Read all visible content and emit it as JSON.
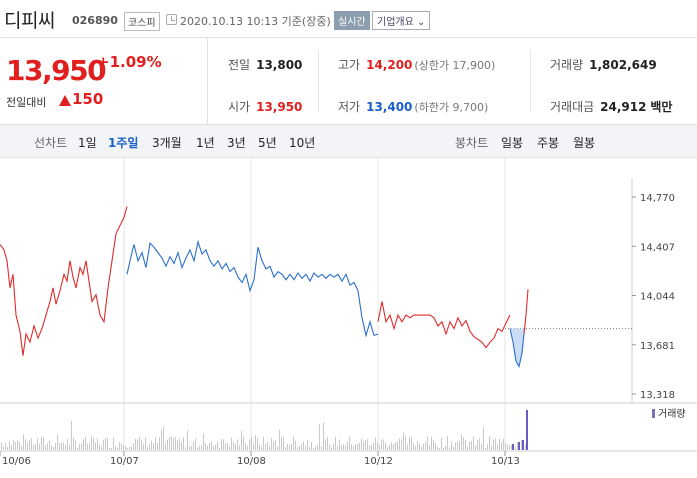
{
  "header": {
    "stock_name": "디피씨",
    "stock_code": "026890",
    "market": "코스피",
    "timestamp": "2020.10.13 10:13 기준(장중)",
    "realtime": "실시간",
    "company_info": "기업개요 ⌄"
  },
  "price": {
    "current": "13,950",
    "diff_label": "전일대비",
    "diff": "150",
    "diff_pct": "+1.09%",
    "direction_icon": "up-triangle-icon",
    "color_up": "#e01f1f",
    "color_down": "#1a5fc9"
  },
  "stats": {
    "prev_close_label": "전일",
    "prev_close": "13,800",
    "open_label": "시가",
    "open": "13,950",
    "high_label": "고가",
    "high": "14,200",
    "upper_limit": "(상한가 17,900)",
    "low_label": "저가",
    "low": "13,400",
    "lower_limit": "(하한가 9,700)",
    "volume_label": "거래량",
    "volume": "1,802,649",
    "amount_label": "거래대금",
    "amount": "24,912",
    "amount_unit": "백만"
  },
  "controls": {
    "line_chart_label": "선차트",
    "periods": [
      "1일",
      "1주일",
      "3개월",
      "1년",
      "3년",
      "5년",
      "10년"
    ],
    "active_period": "1주일",
    "candle_label": "봉차트",
    "candle_periods": [
      "일봉",
      "주봉",
      "월봉"
    ]
  },
  "chart_data": {
    "type": "line",
    "y_ticks": [
      "14,770",
      "14,407",
      "14,044",
      "13,681",
      "13,318"
    ],
    "ylim": [
      13318,
      14770
    ],
    "x_ticks": [
      "10/06",
      "10/07",
      "10/08",
      "10/12",
      "10/13"
    ],
    "reference_price": 13800,
    "volume_label": "거래량",
    "series": [
      {
        "segments": [
          {
            "color": "red",
            "points": [
              [
                0,
                14420
              ],
              [
                4,
                14380
              ],
              [
                7,
                14300
              ],
              [
                10,
                14100
              ],
              [
                13,
                14200
              ],
              [
                16,
                13900
              ],
              [
                20,
                13780
              ],
              [
                23,
                13600
              ],
              [
                26,
                13760
              ],
              [
                30,
                13700
              ],
              [
                34,
                13820
              ],
              [
                38,
                13730
              ],
              [
                42,
                13800
              ],
              [
                46,
                13900
              ],
              [
                50,
                14000
              ],
              [
                53,
                14100
              ],
              [
                56,
                13980
              ],
              [
                60,
                14080
              ],
              [
                64,
                14200
              ],
              [
                67,
                14150
              ],
              [
                70,
                14300
              ],
              [
                73,
                14180
              ],
              [
                76,
                14100
              ],
              [
                80,
                14250
              ],
              [
                83,
                14200
              ],
              [
                86,
                14300
              ],
              [
                89,
                14150
              ],
              [
                92,
                14000
              ],
              [
                96,
                14050
              ],
              [
                100,
                13900
              ],
              [
                104,
                13850
              ],
              [
                108,
                14100
              ],
              [
                112,
                14300
              ],
              [
                116,
                14500
              ],
              [
                120,
                14560
              ],
              [
                124,
                14620
              ],
              [
                127,
                14700
              ]
            ]
          },
          {
            "color": "blue",
            "points": [
              [
                127,
                14200
              ],
              [
                130,
                14300
              ],
              [
                134,
                14420
              ],
              [
                138,
                14300
              ],
              [
                142,
                14360
              ],
              [
                146,
                14250
              ],
              [
                150,
                14430
              ],
              [
                154,
                14400
              ],
              [
                158,
                14360
              ],
              [
                162,
                14320
              ],
              [
                166,
                14260
              ],
              [
                170,
                14330
              ],
              [
                174,
                14280
              ],
              [
                178,
                14360
              ],
              [
                182,
                14250
              ],
              [
                186,
                14320
              ],
              [
                190,
                14380
              ],
              [
                194,
                14300
              ],
              [
                198,
                14440
              ],
              [
                202,
                14350
              ],
              [
                206,
                14380
              ],
              [
                210,
                14300
              ],
              [
                214,
                14260
              ],
              [
                218,
                14300
              ],
              [
                222,
                14240
              ],
              [
                226,
                14280
              ],
              [
                230,
                14220
              ],
              [
                234,
                14250
              ],
              [
                238,
                14180
              ],
              [
                242,
                14140
              ],
              [
                246,
                14200
              ],
              [
                250,
                14080
              ],
              [
                254,
                14160
              ],
              [
                258,
                14400
              ],
              [
                262,
                14300
              ],
              [
                266,
                14240
              ],
              [
                270,
                14260
              ],
              [
                274,
                14180
              ],
              [
                278,
                14220
              ],
              [
                282,
                14200
              ],
              [
                286,
                14160
              ],
              [
                290,
                14200
              ],
              [
                294,
                14160
              ],
              [
                298,
                14210
              ],
              [
                302,
                14170
              ],
              [
                306,
                14200
              ],
              [
                310,
                14150
              ],
              [
                314,
                14210
              ],
              [
                318,
                14180
              ],
              [
                322,
                14200
              ],
              [
                326,
                14170
              ],
              [
                330,
                14200
              ],
              [
                334,
                14180
              ],
              [
                338,
                14200
              ],
              [
                342,
                14150
              ],
              [
                346,
                14200
              ],
              [
                350,
                14120
              ],
              [
                354,
                14140
              ],
              [
                358,
                14080
              ],
              [
                362,
                13880
              ],
              [
                366,
                13750
              ],
              [
                370,
                13850
              ],
              [
                374,
                13750
              ],
              [
                378,
                13760
              ]
            ]
          },
          {
            "color": "red",
            "points": [
              [
                378,
                13850
              ],
              [
                382,
                14000
              ],
              [
                386,
                13850
              ],
              [
                390,
                13900
              ],
              [
                394,
                13800
              ],
              [
                398,
                13900
              ],
              [
                402,
                13850
              ],
              [
                406,
                13900
              ],
              [
                410,
                13880
              ],
              [
                414,
                13900
              ],
              [
                418,
                13900
              ],
              [
                422,
                13900
              ],
              [
                426,
                13900
              ],
              [
                430,
                13900
              ],
              [
                434,
                13880
              ],
              [
                438,
                13820
              ],
              [
                442,
                13850
              ],
              [
                446,
                13760
              ],
              [
                450,
                13850
              ],
              [
                454,
                13800
              ],
              [
                458,
                13880
              ],
              [
                462,
                13820
              ],
              [
                466,
                13860
              ],
              [
                470,
                13780
              ],
              [
                474,
                13740
              ],
              [
                478,
                13720
              ],
              [
                482,
                13700
              ],
              [
                486,
                13660
              ],
              [
                490,
                13700
              ],
              [
                494,
                13730
              ],
              [
                498,
                13800
              ],
              [
                502,
                13780
              ],
              [
                506,
                13840
              ],
              [
                510,
                13900
              ]
            ]
          },
          {
            "color": "blue",
            "points": [
              [
                510,
                13800
              ],
              [
                513,
                13700
              ],
              [
                516,
                13560
              ],
              [
                519,
                13520
              ],
              [
                522,
                13620
              ],
              [
                524,
                13760
              ]
            ]
          },
          {
            "color": "red",
            "points": [
              [
                524,
                13760
              ],
              [
                526,
                13900
              ],
              [
                528,
                14090
              ]
            ]
          }
        ]
      }
    ]
  }
}
